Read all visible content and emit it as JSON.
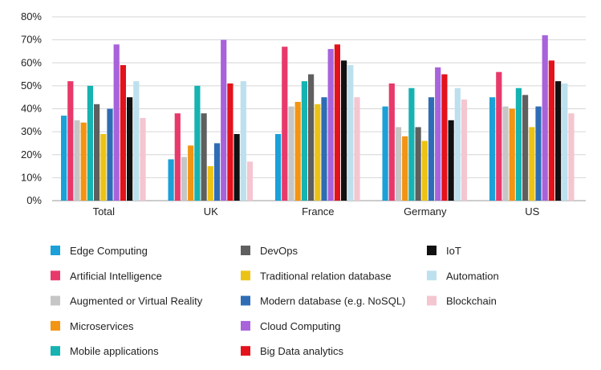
{
  "chart_data": {
    "type": "bar",
    "title": "",
    "xlabel": "",
    "ylabel": "",
    "ylim": [
      0,
      80
    ],
    "y_ticks": [
      "0%",
      "10%",
      "20%",
      "30%",
      "40%",
      "50%",
      "60%",
      "70%",
      "80%"
    ],
    "grid": true,
    "legend_position": "bottom",
    "categories": [
      "Total",
      "UK",
      "France",
      "Germany",
      "US"
    ],
    "series": [
      {
        "name": "Edge Computing",
        "color": "#1ba1d8",
        "values": [
          37,
          18,
          29,
          41,
          45
        ]
      },
      {
        "name": "Artificial Intelligence",
        "color": "#e8396b",
        "values": [
          52,
          38,
          67,
          51,
          56
        ]
      },
      {
        "name": "Augmented or Virtual Reality",
        "color": "#c6c6c6",
        "values": [
          35,
          19,
          41,
          32,
          41
        ]
      },
      {
        "name": "Microservices",
        "color": "#f39412",
        "values": [
          34,
          24,
          43,
          28,
          40
        ]
      },
      {
        "name": "DevOps",
        "color": "#5f5f5f",
        "values": [
          42,
          38,
          55,
          32,
          46
        ]
      },
      {
        "name": "Traditional relation database",
        "color": "#ecc314",
        "values": [
          29,
          15,
          42,
          26,
          32
        ]
      },
      {
        "name": "Modern database (e.g. NoSQL)",
        "color": "#2e6db5",
        "values": [
          40,
          25,
          45,
          45,
          41
        ]
      },
      {
        "name": "Mobile applications",
        "color": "#15b3b1",
        "values": [
          50,
          50,
          52,
          49,
          49
        ]
      },
      {
        "name": "Cloud Computing",
        "color": "#a863db",
        "values": [
          68,
          70,
          66,
          58,
          72
        ]
      },
      {
        "name": "Big Data analytics",
        "color": "#e3121b",
        "values": [
          59,
          51,
          68,
          55,
          61
        ]
      },
      {
        "name": "IoT",
        "color": "#111111",
        "values": [
          45,
          29,
          61,
          35,
          52
        ]
      },
      {
        "name": "Automation",
        "color": "#bde0ee",
        "values": [
          52,
          52,
          59,
          49,
          51
        ]
      },
      {
        "name": "Blockchain",
        "color": "#f4c6d0",
        "values": [
          36,
          17,
          45,
          44,
          38
        ]
      }
    ],
    "bar_order": [
      "Edge Computing",
      "Artificial Intelligence",
      "Augmented or Virtual Reality",
      "Microservices",
      "Mobile applications",
      "DevOps",
      "Traditional relation database",
      "Modern database (e.g. NoSQL)",
      "Cloud Computing",
      "Big Data analytics",
      "IoT",
      "Automation",
      "Blockchain"
    ],
    "legend_columns": [
      [
        "Edge Computing",
        "Artificial Intelligence",
        "Augmented or Virtual Reality",
        "Microservices",
        "Mobile applications"
      ],
      [
        "DevOps",
        "Traditional relation database",
        "Modern database (e.g. NoSQL)",
        "Cloud Computing",
        "Big Data analytics"
      ],
      [
        "IoT",
        "Automation",
        "Blockchain"
      ]
    ]
  }
}
